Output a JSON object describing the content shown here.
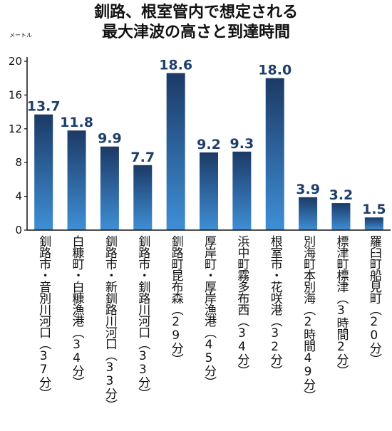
{
  "chart_data": {
    "type": "bar",
    "title": [
      "釧路、根室管内で想定される",
      "最大津波の高さと到達時間"
    ],
    "ylabel": "メートル",
    "ylim": [
      0,
      20
    ],
    "yticks": [
      0,
      4,
      8,
      12,
      16,
      20
    ],
    "categories": [
      "釧路市・音別川河口（37分）",
      "白糠町・白糠漁港（34分）",
      "釧路市・新釧路川河口（33分）",
      "釧路市・釧路川河口（33分）",
      "釧路町昆布森（29分）",
      "厚岸町・厚岸漁港（45分）",
      "浜中町霧多布西（34分）",
      "根室市・花咲港（32分）",
      "別海町本別海（2時間49分）",
      "標津町標津（3時間2分）",
      "羅臼町船見町（20分）"
    ],
    "values": [
      13.7,
      11.8,
      9.9,
      7.7,
      18.6,
      9.2,
      9.3,
      18.0,
      3.9,
      3.2,
      1.5
    ],
    "value_labels": [
      "13.7",
      "11.8",
      "9.9",
      "7.7",
      "18.6",
      "9.2",
      "9.3",
      "18.0",
      "3.9",
      "3.2",
      "1.5"
    ],
    "colors": {
      "bar_top": "#1c3a66",
      "bar_bottom": "#3f8fd6",
      "value_label": "#1f3f6b",
      "axis": "#111111",
      "text": "#111111"
    }
  }
}
